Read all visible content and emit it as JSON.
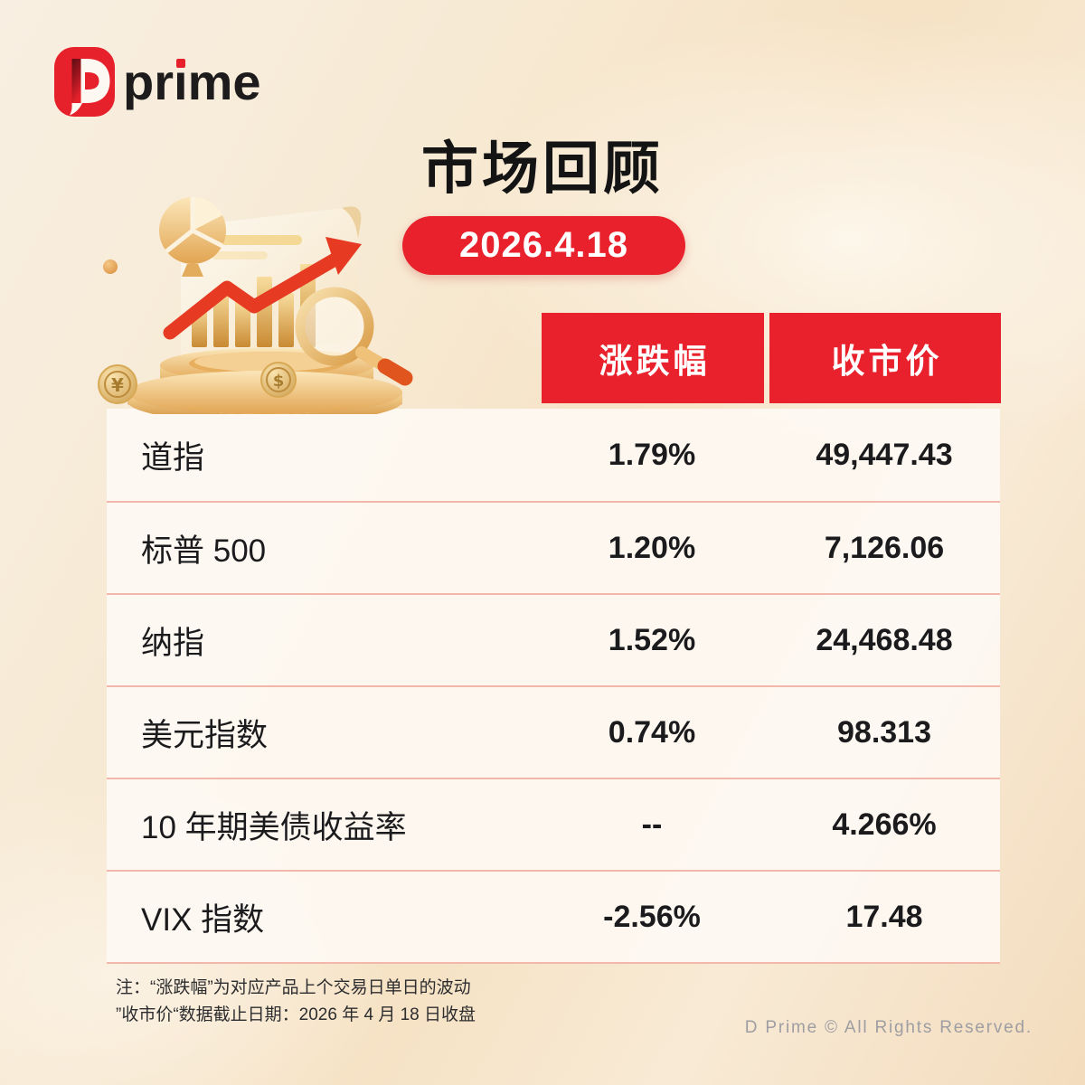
{
  "brand": {
    "logo_text_pre": "pr",
    "logo_text_i": "ı",
    "logo_text_post": "me"
  },
  "header": {
    "title": "市场回顾",
    "date": "2026.4.18"
  },
  "table": {
    "columns": [
      "涨跌幅",
      "收市价"
    ],
    "rows": [
      {
        "name": "道指",
        "change": "1.79%",
        "close": "49,447.43"
      },
      {
        "name": "标普 500",
        "change": "1.20%",
        "close": "7,126.06"
      },
      {
        "name": "纳指",
        "change": "1.52%",
        "close": "24,468.48"
      },
      {
        "name": "美元指数",
        "change": "0.74%",
        "close": "98.313"
      },
      {
        "name": "10 年期美债收益率",
        "change": "--",
        "close": "4.266%"
      },
      {
        "name": "VIX 指数",
        "change": "-2.56%",
        "close": "17.48"
      }
    ]
  },
  "notes": {
    "line1": "注：“涨跌幅”为对应产品上个交易日单日的波动",
    "line2": "”收市价“数据截止日期：2026 年 4 月 18 日收盘"
  },
  "footer": {
    "copyright": "D Prime © All Rights Reserved."
  },
  "colors": {
    "accent_red": "#E8212C",
    "divider_pink": "#F2B6AA",
    "gold": "#E9B768",
    "background_cream": "#F7E8D0"
  },
  "chart_data": {
    "type": "table",
    "title": "市场回顾",
    "date": "2026.4.18",
    "columns": [
      "",
      "涨跌幅",
      "收市价"
    ],
    "rows": [
      [
        "道指",
        "1.79%",
        "49,447.43"
      ],
      [
        "标普 500",
        "1.20%",
        "7,126.06"
      ],
      [
        "纳指",
        "1.52%",
        "24,468.48"
      ],
      [
        "美元指数",
        "0.74%",
        "98.313"
      ],
      [
        "10 年期美债收益率",
        "--",
        "4.266%"
      ],
      [
        "VIX 指数",
        "-2.56%",
        "17.48"
      ]
    ]
  }
}
